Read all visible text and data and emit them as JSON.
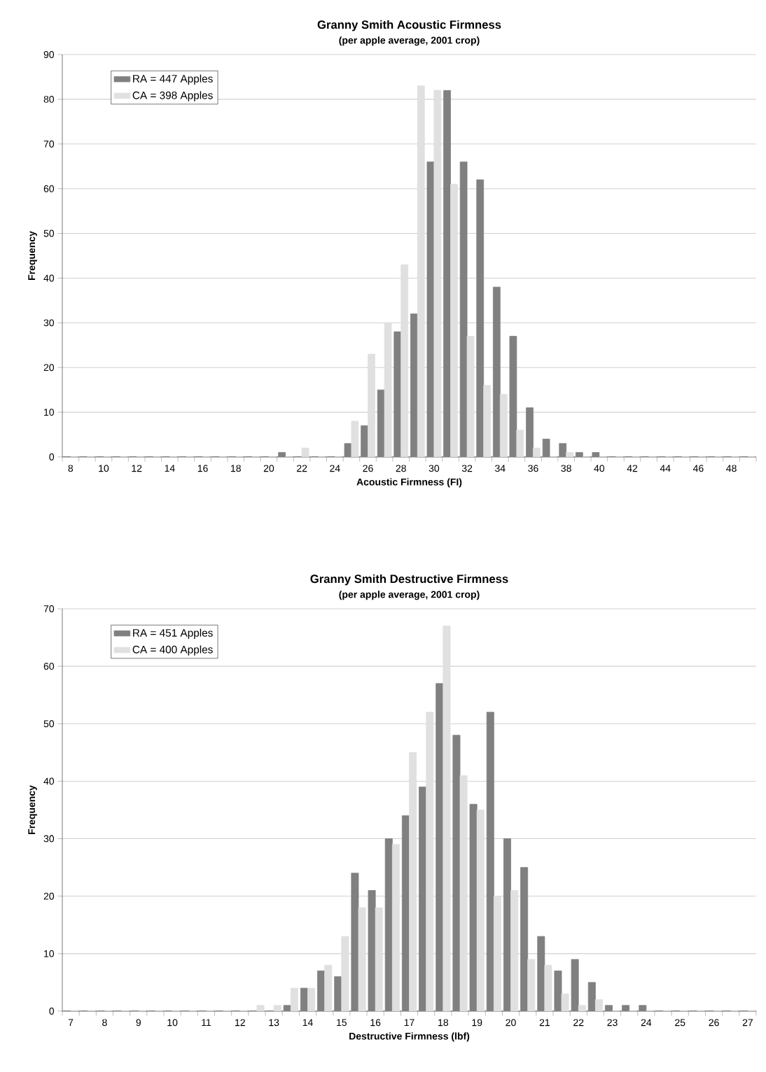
{
  "chart_data": [
    {
      "type": "bar",
      "title": "Granny Smith Acoustic Firmness",
      "subtitle": "(per apple average, 2001 crop)",
      "xlabel": "Acoustic Firmness (FI)",
      "ylabel": "Frequency",
      "categories": [
        "8",
        null,
        "10",
        null,
        "12",
        null,
        "14",
        null,
        "16",
        null,
        "18",
        null,
        "20",
        null,
        "22",
        null,
        "24",
        null,
        "26",
        null,
        "28",
        null,
        "30",
        null,
        "32",
        null,
        "34",
        null,
        "36",
        null,
        "38",
        null,
        "40",
        null,
        "42",
        null,
        "44",
        null,
        "46",
        null,
        "48",
        null
      ],
      "series": [
        {
          "name": "RA = 447 Apples",
          "color": "#808080",
          "values": [
            0,
            0,
            0,
            0,
            0,
            0,
            0,
            0,
            0,
            0,
            0,
            0,
            0,
            1,
            0,
            0,
            0,
            3,
            7,
            15,
            28,
            32,
            66,
            82,
            66,
            62,
            38,
            27,
            11,
            4,
            3,
            1,
            1,
            0,
            0,
            0,
            0,
            0,
            0,
            0,
            0,
            0
          ]
        },
        {
          "name": "CA = 398 Apples",
          "color": "#e0e0e0",
          "values": [
            0,
            0,
            0,
            0,
            0,
            0,
            0,
            0,
            0,
            0,
            0,
            0,
            0,
            0,
            2,
            0,
            0,
            8,
            23,
            30,
            43,
            83,
            82,
            61,
            27,
            16,
            14,
            6,
            2,
            0,
            1,
            0,
            0,
            0,
            0,
            0,
            0,
            0,
            0,
            0,
            0,
            0
          ]
        }
      ],
      "ylim": [
        0,
        90
      ],
      "yticks": [
        0,
        10,
        20,
        30,
        40,
        50,
        60,
        70,
        80,
        90
      ],
      "grid": "y",
      "legend": "top left"
    },
    {
      "type": "bar",
      "title": "Granny Smith Destructive Firmness",
      "subtitle": "(per apple average, 2001 crop)",
      "xlabel": "Destructive Firmness (lbf)",
      "ylabel": "Frequency",
      "categories": [
        "7",
        null,
        "8",
        null,
        "9",
        null,
        "10",
        null,
        "11",
        null,
        "12",
        null,
        "13",
        null,
        "14",
        null,
        "15",
        null,
        "16",
        null,
        "17",
        null,
        "18",
        null,
        "19",
        null,
        "20",
        null,
        "21",
        null,
        "22",
        null,
        "23",
        null,
        "24",
        null,
        "25",
        null,
        "26",
        null,
        "27"
      ],
      "series": [
        {
          "name": "RA = 451 Apples",
          "color": "#808080",
          "values": [
            0,
            0,
            0,
            0,
            0,
            0,
            0,
            0,
            0,
            0,
            0,
            0,
            0,
            1,
            4,
            7,
            6,
            24,
            21,
            30,
            34,
            39,
            57,
            48,
            36,
            52,
            30,
            25,
            13,
            7,
            9,
            5,
            1,
            1,
            1,
            0,
            0,
            0,
            0,
            0,
            0
          ]
        },
        {
          "name": "CA = 400 Apples",
          "color": "#e0e0e0",
          "values": [
            0,
            0,
            0,
            0,
            0,
            0,
            0,
            0,
            0,
            0,
            0,
            1,
            1,
            4,
            4,
            8,
            13,
            18,
            18,
            29,
            45,
            52,
            67,
            41,
            35,
            20,
            21,
            9,
            8,
            3,
            1,
            2,
            0,
            0,
            0,
            0,
            0,
            0,
            0,
            0,
            0
          ]
        }
      ],
      "ylim": [
        0,
        70
      ],
      "yticks": [
        0,
        10,
        20,
        30,
        40,
        50,
        60,
        70
      ],
      "grid": "y",
      "legend": "top left"
    }
  ]
}
